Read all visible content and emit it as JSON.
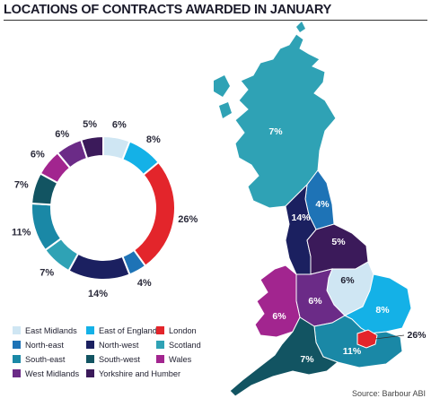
{
  "title": "LOCATIONS OF CONTRACTS AWARDED IN JANUARY",
  "source": "Source: Barbour ABI",
  "chart_data": {
    "type": "pie",
    "subtype": "donut",
    "slice_order": [
      "East Midlands",
      "East of England",
      "London",
      "North-east",
      "North-west",
      "Scotland",
      "South-east",
      "South-west",
      "Wales",
      "West Midlands",
      "Yorkshire and Humber"
    ],
    "series": [
      {
        "name": "East Midlands",
        "value": 6,
        "label": "6%",
        "color": "#cfe6f3"
      },
      {
        "name": "East of England",
        "value": 8,
        "label": "8%",
        "color": "#14b1e7"
      },
      {
        "name": "London",
        "value": 26,
        "label": "26%",
        "color": "#e3252b"
      },
      {
        "name": "North-east",
        "value": 4,
        "label": "4%",
        "color": "#1e73b6"
      },
      {
        "name": "North-west",
        "value": 14,
        "label": "14%",
        "color": "#1b2060"
      },
      {
        "name": "Scotland",
        "value": 7,
        "label": "7%",
        "color": "#2fa2b5"
      },
      {
        "name": "South-east",
        "value": 11,
        "label": "11%",
        "color": "#1a88a6"
      },
      {
        "name": "South-west",
        "value": 7,
        "label": "7%",
        "color": "#125462"
      },
      {
        "name": "Wales",
        "value": 6,
        "label": "6%",
        "color": "#a2258f"
      },
      {
        "name": "West Midlands",
        "value": 6,
        "label": "6%",
        "color": "#6b2b87"
      },
      {
        "name": "Yorkshire and Humber",
        "value": 5,
        "label": "5%",
        "color": "#3b1a5a"
      }
    ],
    "legend_position": "bottom-left",
    "map_labels": {
      "Scotland": "7%",
      "North-east": "4%",
      "North-west": "14%",
      "Yorkshire and Humber": "5%",
      "East Midlands": "6%",
      "West Midlands": "6%",
      "Wales": "6%",
      "East of England": "8%",
      "South-east": "11%",
      "South-west": "7%",
      "London": "26%"
    }
  }
}
